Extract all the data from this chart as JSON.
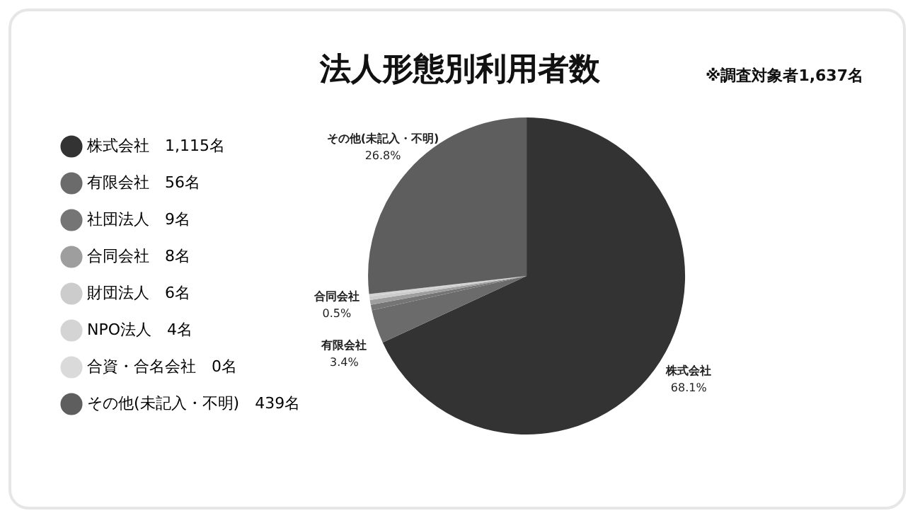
{
  "chart_data": {
    "type": "pie",
    "title": "法人形態別利用者数",
    "subtitle": "※調査対象者1,637名",
    "categories": [
      "株式会社",
      "有限会社",
      "社団法人",
      "合同会社",
      "財団法人",
      "NPO法人",
      "合資・合名会社",
      "その他(未記入・不明)"
    ],
    "values": [
      1115,
      56,
      9,
      8,
      6,
      4,
      0,
      439
    ],
    "value_labels": [
      "1,115名",
      "56名",
      "9名",
      "8名",
      "6名",
      "4名",
      "0名",
      "439名"
    ],
    "colors": [
      "#333333",
      "#6b6b6b",
      "#757575",
      "#9e9e9e",
      "#cccccc",
      "#d4d4d4",
      "#dadada",
      "#5e5e5e"
    ],
    "annotations": [
      {
        "text": "68.1%",
        "x": "株式会社"
      },
      {
        "text": "3.4%",
        "x": "有限会社"
      },
      {
        "text": "0.5%",
        "x": "合同会社"
      },
      {
        "text": "26.8%",
        "x": "その他(未記入・不明)"
      }
    ],
    "legend": "left"
  }
}
